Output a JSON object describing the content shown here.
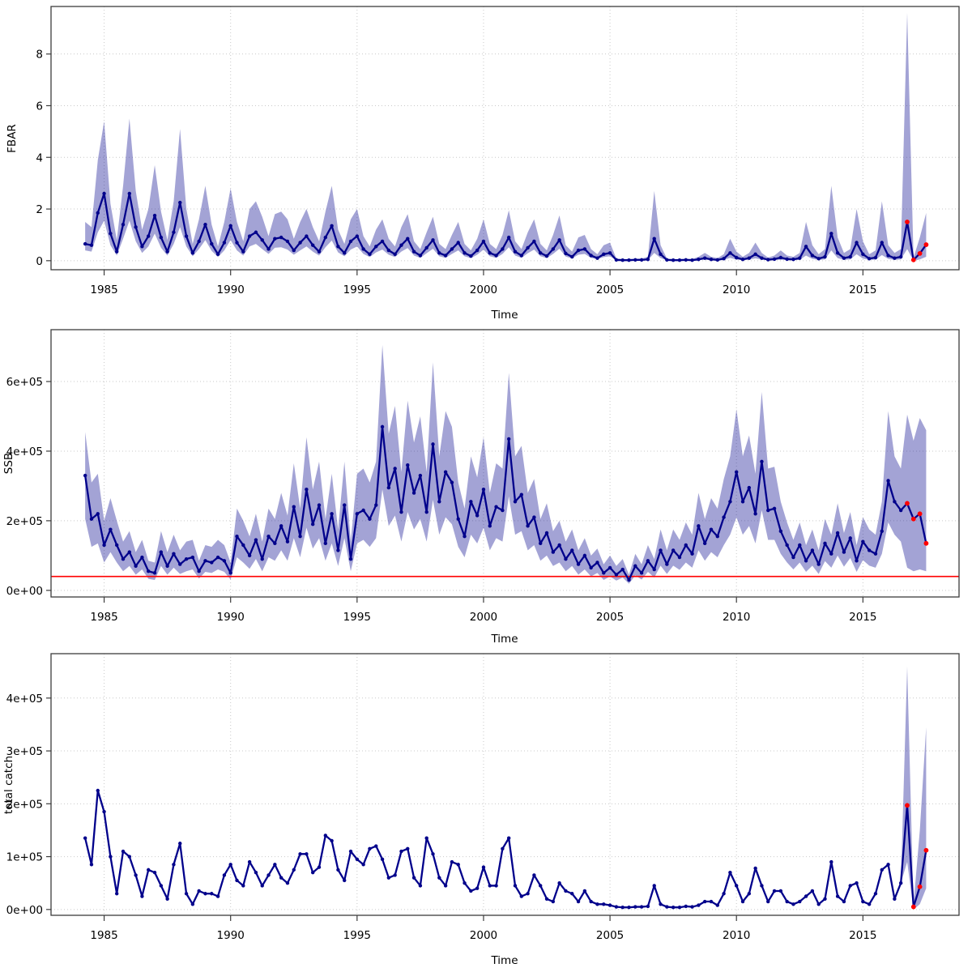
{
  "figure": {
    "kind": "stock-assessment-summary",
    "panel_count": 3,
    "colors": {
      "estimate_line": "#00008b",
      "estimate_point": "#00008b",
      "confidence_band": "rgba(0,0,139,0.36)",
      "forecast_point": "#ff0000",
      "reference_line": "#ff0000",
      "grid": "#c9c9c9",
      "panel_border": "#3c3c3c"
    }
  },
  "chart_data": {
    "type": "line",
    "x_axis_label": "Time",
    "x_start": 1984.25,
    "x_step": 0.25,
    "x_end": 2017.5,
    "xlim": [
      1982.9,
      2018.8
    ],
    "x_ticks": [
      1985,
      1990,
      1995,
      2000,
      2005,
      2010,
      2015
    ],
    "x_tick_labels": [
      "1985",
      "1990",
      "1995",
      "2000",
      "2005",
      "2010",
      "2015"
    ],
    "grid": "dotted-major",
    "legend": "none",
    "forecast_from_index": 130,
    "panels": [
      {
        "ylabel": "FBAR",
        "unit_scale": 1,
        "ylim": [
          -0.35,
          9.84
        ],
        "y_ticks": [
          0,
          2,
          4,
          6,
          8
        ],
        "y_tick_labels": [
          "0",
          "2",
          "4",
          "6",
          "8"
        ],
        "ref_line": null,
        "red_from": 130,
        "est": [
          0.65,
          0.6,
          1.85,
          2.6,
          1.05,
          0.35,
          1.4,
          2.6,
          1.3,
          0.55,
          0.95,
          1.75,
          0.9,
          0.35,
          1.1,
          2.25,
          0.95,
          0.3,
          0.75,
          1.4,
          0.65,
          0.25,
          0.7,
          1.35,
          0.7,
          0.35,
          0.95,
          1.1,
          0.8,
          0.45,
          0.85,
          0.9,
          0.75,
          0.4,
          0.7,
          0.95,
          0.6,
          0.35,
          0.9,
          1.35,
          0.55,
          0.3,
          0.75,
          0.95,
          0.45,
          0.25,
          0.55,
          0.75,
          0.4,
          0.25,
          0.6,
          0.85,
          0.35,
          0.2,
          0.5,
          0.8,
          0.3,
          0.2,
          0.45,
          0.7,
          0.3,
          0.18,
          0.4,
          0.75,
          0.3,
          0.2,
          0.45,
          0.9,
          0.35,
          0.2,
          0.5,
          0.75,
          0.3,
          0.18,
          0.45,
          0.8,
          0.28,
          0.15,
          0.4,
          0.45,
          0.2,
          0.1,
          0.25,
          0.3,
          0.03,
          0.02,
          0.02,
          0.03,
          0.03,
          0.05,
          0.85,
          0.25,
          0.03,
          0.02,
          0.02,
          0.03,
          0.02,
          0.05,
          0.1,
          0.05,
          0.03,
          0.08,
          0.3,
          0.12,
          0.05,
          0.1,
          0.25,
          0.1,
          0.04,
          0.06,
          0.12,
          0.06,
          0.05,
          0.1,
          0.55,
          0.2,
          0.08,
          0.15,
          1.05,
          0.3,
          0.1,
          0.15,
          0.7,
          0.25,
          0.08,
          0.12,
          0.7,
          0.2,
          0.1,
          0.15,
          1.5,
          0.03,
          0.28,
          0.62
        ],
        "lo": [
          0.4,
          0.35,
          1.1,
          1.55,
          0.6,
          0.2,
          0.85,
          1.55,
          0.75,
          0.3,
          0.55,
          1.05,
          0.5,
          0.2,
          0.65,
          1.3,
          0.55,
          0.17,
          0.45,
          0.8,
          0.38,
          0.14,
          0.4,
          0.8,
          0.4,
          0.2,
          0.55,
          0.65,
          0.45,
          0.26,
          0.5,
          0.52,
          0.43,
          0.23,
          0.4,
          0.55,
          0.35,
          0.2,
          0.52,
          0.78,
          0.32,
          0.17,
          0.43,
          0.55,
          0.26,
          0.14,
          0.32,
          0.43,
          0.23,
          0.14,
          0.35,
          0.49,
          0.2,
          0.11,
          0.29,
          0.46,
          0.17,
          0.11,
          0.26,
          0.4,
          0.17,
          0.1,
          0.23,
          0.43,
          0.17,
          0.11,
          0.26,
          0.52,
          0.2,
          0.11,
          0.29,
          0.43,
          0.17,
          0.1,
          0.26,
          0.46,
          0.16,
          0.09,
          0.23,
          0.26,
          0.11,
          0.06,
          0.14,
          0.17,
          0.01,
          0.01,
          0.01,
          0.01,
          0.01,
          0.02,
          0.3,
          0.1,
          0.01,
          0.01,
          0.01,
          0.01,
          0.01,
          0.02,
          0.04,
          0.02,
          0.01,
          0.03,
          0.11,
          0.04,
          0.02,
          0.04,
          0.09,
          0.04,
          0.01,
          0.02,
          0.04,
          0.02,
          0.02,
          0.03,
          0.2,
          0.07,
          0.03,
          0.05,
          0.4,
          0.1,
          0.03,
          0.05,
          0.25,
          0.08,
          0.03,
          0.04,
          0.22,
          0.07,
          0.03,
          0.05,
          0.45,
          0.0,
          0.05,
          0.15
        ],
        "hi": [
          1.5,
          1.3,
          3.9,
          5.4,
          2.2,
          0.8,
          2.9,
          5.5,
          2.7,
          1.2,
          2.0,
          3.7,
          1.9,
          0.8,
          2.3,
          5.1,
          2.0,
          0.65,
          1.6,
          2.9,
          1.4,
          0.55,
          1.5,
          2.8,
          1.5,
          0.75,
          2.0,
          2.3,
          1.7,
          0.95,
          1.8,
          1.9,
          1.6,
          0.85,
          1.5,
          2.0,
          1.3,
          0.75,
          1.9,
          2.9,
          1.2,
          0.65,
          1.6,
          2.0,
          0.95,
          0.55,
          1.2,
          1.6,
          0.85,
          0.55,
          1.3,
          1.8,
          0.75,
          0.45,
          1.1,
          1.7,
          0.65,
          0.45,
          1.0,
          1.5,
          0.65,
          0.4,
          0.85,
          1.6,
          0.65,
          0.45,
          1.0,
          1.95,
          0.75,
          0.45,
          1.1,
          1.6,
          0.65,
          0.4,
          1.0,
          1.75,
          0.6,
          0.35,
          0.9,
          1.0,
          0.45,
          0.25,
          0.6,
          0.7,
          0.08,
          0.06,
          0.06,
          0.08,
          0.08,
          0.15,
          2.7,
          0.6,
          0.08,
          0.06,
          0.06,
          0.08,
          0.06,
          0.15,
          0.3,
          0.15,
          0.1,
          0.25,
          0.85,
          0.35,
          0.15,
          0.3,
          0.7,
          0.3,
          0.12,
          0.2,
          0.4,
          0.2,
          0.15,
          0.3,
          1.5,
          0.6,
          0.25,
          0.45,
          2.9,
          0.9,
          0.3,
          0.45,
          2.0,
          0.75,
          0.25,
          0.4,
          2.3,
          0.6,
          0.3,
          0.45,
          9.6,
          0.12,
          0.9,
          1.85
        ]
      },
      {
        "ylabel": "SSB",
        "unit_scale": 1000,
        "ylim": [
          -19,
          749
        ],
        "y_ticks": [
          0,
          200,
          400,
          600
        ],
        "y_tick_labels": [
          "0e+00",
          "2e+05",
          "4e+05",
          "6e+05"
        ],
        "ref_line": 40,
        "red_from": 130,
        "est": [
          330,
          205,
          220,
          130,
          175,
          130,
          90,
          110,
          70,
          95,
          55,
          50,
          110,
          70,
          105,
          75,
          90,
          95,
          55,
          85,
          80,
          95,
          85,
          50,
          155,
          130,
          100,
          145,
          90,
          155,
          135,
          185,
          140,
          240,
          155,
          290,
          190,
          245,
          135,
          220,
          115,
          245,
          90,
          220,
          230,
          205,
          245,
          470,
          295,
          350,
          225,
          360,
          280,
          330,
          225,
          420,
          255,
          340,
          310,
          205,
          155,
          255,
          215,
          290,
          185,
          240,
          230,
          435,
          255,
          275,
          185,
          210,
          135,
          165,
          110,
          130,
          90,
          115,
          75,
          100,
          65,
          80,
          50,
          65,
          45,
          60,
          30,
          70,
          50,
          85,
          60,
          115,
          75,
          115,
          95,
          130,
          105,
          185,
          135,
          175,
          155,
          210,
          255,
          340,
          255,
          295,
          220,
          370,
          230,
          235,
          170,
          130,
          95,
          130,
          85,
          115,
          75,
          135,
          105,
          165,
          110,
          150,
          85,
          140,
          115,
          105,
          170,
          315,
          255,
          230,
          250,
          205,
          220,
          135
        ],
        "lo": [
          205,
          125,
          135,
          80,
          110,
          80,
          55,
          70,
          45,
          60,
          33,
          30,
          70,
          45,
          65,
          47,
          55,
          60,
          34,
          53,
          50,
          60,
          53,
          31,
          95,
          80,
          62,
          90,
          55,
          95,
          85,
          115,
          85,
          150,
          95,
          180,
          120,
          150,
          85,
          135,
          70,
          150,
          55,
          135,
          145,
          125,
          150,
          290,
          185,
          215,
          140,
          225,
          175,
          205,
          140,
          260,
          160,
          210,
          190,
          125,
          95,
          160,
          135,
          180,
          115,
          150,
          140,
          270,
          160,
          170,
          115,
          130,
          85,
          100,
          70,
          80,
          55,
          70,
          45,
          60,
          40,
          50,
          30,
          40,
          28,
          37,
          19,
          43,
          31,
          53,
          37,
          71,
          47,
          71,
          59,
          80,
          65,
          115,
          85,
          110,
          95,
          130,
          160,
          210,
          160,
          185,
          135,
          230,
          145,
          145,
          105,
          80,
          60,
          80,
          53,
          71,
          47,
          84,
          65,
          100,
          68,
          93,
          53,
          87,
          71,
          65,
          105,
          195,
          160,
          140,
          65,
          55,
          60,
          55
        ],
        "hi": [
          455,
          310,
          335,
          200,
          265,
          200,
          140,
          170,
          110,
          145,
          85,
          80,
          170,
          110,
          160,
          115,
          140,
          145,
          85,
          130,
          125,
          145,
          130,
          80,
          235,
          200,
          155,
          220,
          140,
          235,
          205,
          280,
          215,
          365,
          235,
          440,
          290,
          370,
          205,
          335,
          175,
          370,
          140,
          335,
          350,
          310,
          370,
          705,
          450,
          530,
          340,
          545,
          425,
          500,
          340,
          655,
          385,
          515,
          470,
          310,
          235,
          385,
          325,
          440,
          280,
          365,
          350,
          625,
          385,
          415,
          280,
          320,
          205,
          250,
          170,
          200,
          140,
          175,
          115,
          150,
          100,
          120,
          75,
          100,
          70,
          90,
          45,
          105,
          75,
          130,
          90,
          175,
          115,
          175,
          145,
          195,
          160,
          280,
          205,
          265,
          235,
          320,
          385,
          520,
          385,
          445,
          335,
          570,
          350,
          355,
          255,
          195,
          145,
          195,
          130,
          175,
          115,
          205,
          160,
          250,
          165,
          225,
          130,
          210,
          175,
          160,
          255,
          515,
          385,
          350,
          505,
          430,
          495,
          460
        ]
      },
      {
        "ylabel": "total catch",
        "unit_scale": 1000,
        "ylim": [
          -11,
          484
        ],
        "y_ticks": [
          0,
          100,
          200,
          300,
          400
        ],
        "y_tick_labels": [
          "0e+00",
          "1e+05",
          "2e+05",
          "3e+05",
          "4e+05"
        ],
        "ref_line": null,
        "red_from": 130,
        "band_from": 129,
        "band_lo": [
          50,
          90,
          0,
          10,
          40
        ],
        "band_hi": [
          50,
          460,
          10,
          150,
          345
        ],
        "est": [
          135,
          85,
          225,
          185,
          100,
          30,
          110,
          100,
          65,
          25,
          75,
          70,
          45,
          20,
          85,
          125,
          30,
          10,
          35,
          30,
          30,
          25,
          65,
          85,
          55,
          45,
          90,
          70,
          45,
          65,
          85,
          60,
          50,
          75,
          105,
          105,
          70,
          80,
          140,
          130,
          75,
          55,
          110,
          95,
          85,
          115,
          120,
          95,
          60,
          65,
          110,
          115,
          60,
          45,
          135,
          105,
          60,
          45,
          90,
          85,
          50,
          35,
          40,
          80,
          45,
          45,
          115,
          135,
          45,
          25,
          30,
          65,
          45,
          20,
          15,
          50,
          35,
          30,
          15,
          35,
          15,
          10,
          10,
          8,
          5,
          4,
          4,
          5,
          5,
          6,
          45,
          10,
          5,
          4,
          4,
          6,
          5,
          8,
          15,
          15,
          8,
          30,
          70,
          45,
          15,
          30,
          78,
          45,
          15,
          35,
          35,
          15,
          10,
          15,
          25,
          35,
          10,
          20,
          90,
          25,
          15,
          45,
          50,
          15,
          10,
          30,
          75,
          85,
          20,
          50,
          197,
          5,
          43,
          112
        ]
      }
    ]
  }
}
